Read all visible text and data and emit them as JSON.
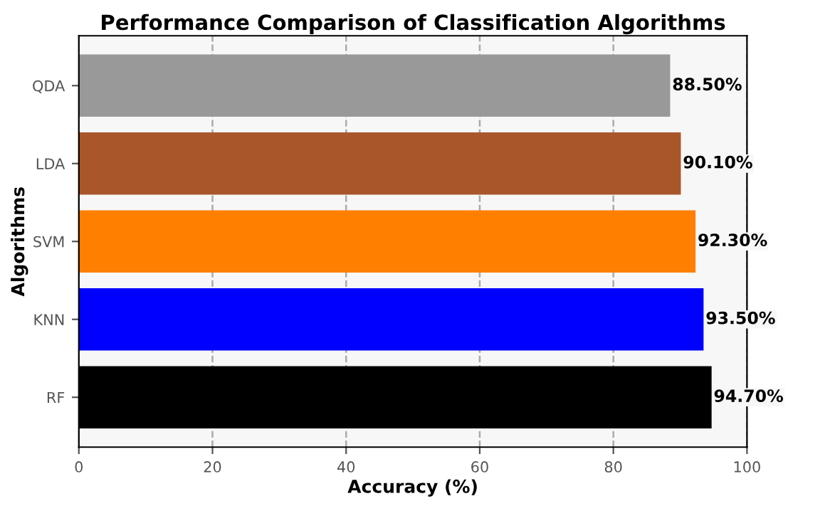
{
  "chart_data": {
    "type": "bar",
    "orientation": "horizontal",
    "title": "Performance Comparison of Classification Algorithms",
    "xlabel": "Accuracy (%)",
    "ylabel": "Algorithms",
    "categories": [
      "QDA",
      "LDA",
      "SVM",
      "KNN",
      "RF"
    ],
    "values": [
      88.5,
      90.1,
      92.3,
      93.5,
      94.7
    ],
    "colors": [
      "#999999",
      "#a9562b",
      "#ff7f00",
      "#0000ff",
      "#000000"
    ],
    "value_labels": [
      "88.50%",
      "90.10%",
      "92.30%",
      "93.50%",
      "94.70%"
    ],
    "xlim": [
      0,
      100
    ],
    "xticks": [
      0,
      20,
      40,
      60,
      80,
      100
    ],
    "grid": "x"
  }
}
